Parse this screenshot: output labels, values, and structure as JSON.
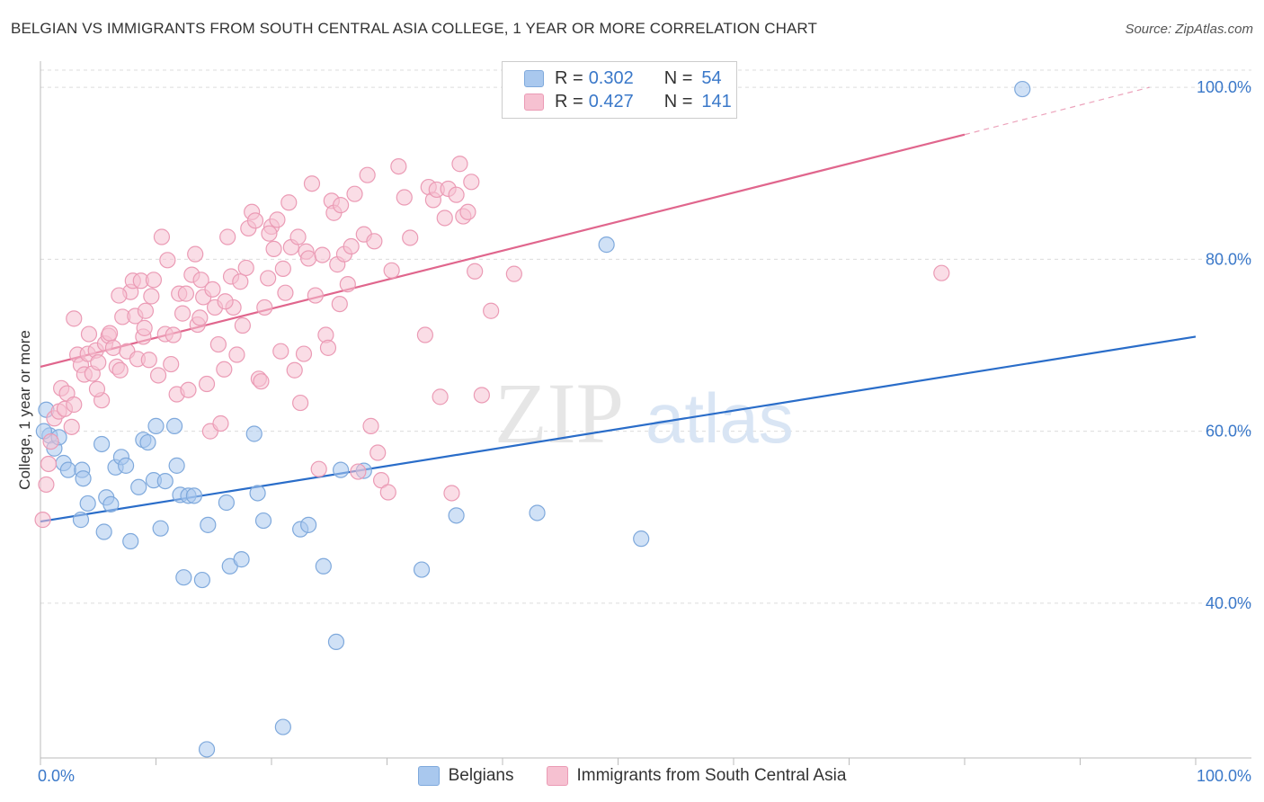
{
  "title": "BELGIAN VS IMMIGRANTS FROM SOUTH CENTRAL ASIA COLLEGE, 1 YEAR OR MORE CORRELATION CHART",
  "source": "Source: ZipAtlas.com",
  "watermark": {
    "zip": "ZIP",
    "atlas": "atlas"
  },
  "legend": {
    "series": [
      {
        "r_label": "R =",
        "r_value": "0.302",
        "n_label": "N =",
        "n_value": "54"
      },
      {
        "r_label": "R =",
        "r_value": "0.427",
        "n_label": "N =",
        "n_value": "141"
      }
    ]
  },
  "colors": {
    "blue_fill": "#a9c8ee",
    "blue_stroke": "#7fa9dc",
    "blue_line": "#2a6dc9",
    "pink_fill": "#f6c1d1",
    "pink_stroke": "#eb9bb5",
    "pink_line": "#e0668d",
    "tick_label": "#3a78c9",
    "grid": "#dcdcdc"
  },
  "chart_data": {
    "type": "scatter",
    "title": "BELGIAN VS IMMIGRANTS FROM SOUTH CENTRAL ASIA COLLEGE, 1 YEAR OR MORE CORRELATION CHART",
    "xlabel": "",
    "ylabel": "College, 1 year or more",
    "xlim": [
      0,
      100
    ],
    "ylim": [
      22,
      102
    ],
    "x_tick_labels": [
      "0.0%",
      "100.0%"
    ],
    "y_ticks": [
      40,
      60,
      80,
      100
    ],
    "y_tick_labels": [
      "40.0%",
      "60.0%",
      "80.0%",
      "100.0%"
    ],
    "legend_position": "bottom",
    "series": [
      {
        "name": "Belgians",
        "color": "blue",
        "r": 0.302,
        "n": 54,
        "trend": {
          "x0": 0,
          "y0": 49.5,
          "x1": 100,
          "y1": 71.0
        },
        "points": [
          [
            0.5,
            62.5
          ],
          [
            0.8,
            59.5
          ],
          [
            1.2,
            58.0
          ],
          [
            1.6,
            59.3
          ],
          [
            2.0,
            56.3
          ],
          [
            2.4,
            55.5
          ],
          [
            3.5,
            49.7
          ],
          [
            3.6,
            55.5
          ],
          [
            3.7,
            54.5
          ],
          [
            4.1,
            51.6
          ],
          [
            5.3,
            58.5
          ],
          [
            5.5,
            48.3
          ],
          [
            5.7,
            52.3
          ],
          [
            6.1,
            51.5
          ],
          [
            6.5,
            55.8
          ],
          [
            7.0,
            57.0
          ],
          [
            7.4,
            56.0
          ],
          [
            7.8,
            47.2
          ],
          [
            8.5,
            53.5
          ],
          [
            8.9,
            59.0
          ],
          [
            9.3,
            58.7
          ],
          [
            9.8,
            54.3
          ],
          [
            10.0,
            60.6
          ],
          [
            10.4,
            48.7
          ],
          [
            10.8,
            54.2
          ],
          [
            11.6,
            60.6
          ],
          [
            11.8,
            56.0
          ],
          [
            12.1,
            52.6
          ],
          [
            12.4,
            43.0
          ],
          [
            12.8,
            52.5
          ],
          [
            13.3,
            52.5
          ],
          [
            14.0,
            42.7
          ],
          [
            14.4,
            23.0
          ],
          [
            14.5,
            49.1
          ],
          [
            16.1,
            51.7
          ],
          [
            16.4,
            44.3
          ],
          [
            17.4,
            45.1
          ],
          [
            18.5,
            59.7
          ],
          [
            18.8,
            52.8
          ],
          [
            19.3,
            49.6
          ],
          [
            21.0,
            25.6
          ],
          [
            22.5,
            48.6
          ],
          [
            23.2,
            49.1
          ],
          [
            24.5,
            44.3
          ],
          [
            25.6,
            35.5
          ],
          [
            26.0,
            55.5
          ],
          [
            28.0,
            55.4
          ],
          [
            33.0,
            43.9
          ],
          [
            36.0,
            50.2
          ],
          [
            43.0,
            50.5
          ],
          [
            52.0,
            47.5
          ],
          [
            49.0,
            81.7
          ],
          [
            85.0,
            99.8
          ],
          [
            0.3,
            60.0
          ]
        ]
      },
      {
        "name": "Immigrants from South Central Asia",
        "color": "pink",
        "r": 0.427,
        "n": 141,
        "trend": {
          "x0": 0,
          "y0": 67.5,
          "x1": 80,
          "y1": 94.5,
          "dash_x1": 96,
          "dash_y1": 100
        },
        "points": [
          [
            0.2,
            49.7
          ],
          [
            0.5,
            53.8
          ],
          [
            0.7,
            56.2
          ],
          [
            0.9,
            58.8
          ],
          [
            1.2,
            61.5
          ],
          [
            1.6,
            62.3
          ],
          [
            1.8,
            65.0
          ],
          [
            2.1,
            62.6
          ],
          [
            2.3,
            64.4
          ],
          [
            2.7,
            60.5
          ],
          [
            2.9,
            63.1
          ],
          [
            3.2,
            68.9
          ],
          [
            3.5,
            67.7
          ],
          [
            3.8,
            66.6
          ],
          [
            4.1,
            69.0
          ],
          [
            4.2,
            71.3
          ],
          [
            4.5,
            66.7
          ],
          [
            4.8,
            69.4
          ],
          [
            5.0,
            68.0
          ],
          [
            5.3,
            63.6
          ],
          [
            5.6,
            70.2
          ],
          [
            5.9,
            71.1
          ],
          [
            6.0,
            71.4
          ],
          [
            6.3,
            69.7
          ],
          [
            6.6,
            67.5
          ],
          [
            6.9,
            67.1
          ],
          [
            7.1,
            73.3
          ],
          [
            7.5,
            69.3
          ],
          [
            7.8,
            76.2
          ],
          [
            8.0,
            77.5
          ],
          [
            8.2,
            73.4
          ],
          [
            8.4,
            68.4
          ],
          [
            8.7,
            77.5
          ],
          [
            8.9,
            71.0
          ],
          [
            9.1,
            74.0
          ],
          [
            9.4,
            68.3
          ],
          [
            9.6,
            75.7
          ],
          [
            9.8,
            77.6
          ],
          [
            10.2,
            66.5
          ],
          [
            10.5,
            82.6
          ],
          [
            10.8,
            71.3
          ],
          [
            11.0,
            79.9
          ],
          [
            11.3,
            67.8
          ],
          [
            11.5,
            71.2
          ],
          [
            11.8,
            64.3
          ],
          [
            12.0,
            76.0
          ],
          [
            12.3,
            73.7
          ],
          [
            12.6,
            76.0
          ],
          [
            12.8,
            64.8
          ],
          [
            13.1,
            78.2
          ],
          [
            13.4,
            80.6
          ],
          [
            13.6,
            72.4
          ],
          [
            13.9,
            77.6
          ],
          [
            14.1,
            75.6
          ],
          [
            14.4,
            65.5
          ],
          [
            14.7,
            60.0
          ],
          [
            14.9,
            76.5
          ],
          [
            15.1,
            74.4
          ],
          [
            15.4,
            70.1
          ],
          [
            15.6,
            60.9
          ],
          [
            15.9,
            67.2
          ],
          [
            16.2,
            82.6
          ],
          [
            16.5,
            78.0
          ],
          [
            16.7,
            74.4
          ],
          [
            17.0,
            68.9
          ],
          [
            17.3,
            77.4
          ],
          [
            17.5,
            72.3
          ],
          [
            17.8,
            79.0
          ],
          [
            18.0,
            83.6
          ],
          [
            18.3,
            85.5
          ],
          [
            18.6,
            84.5
          ],
          [
            18.9,
            66.1
          ],
          [
            19.1,
            65.8
          ],
          [
            19.4,
            74.4
          ],
          [
            19.7,
            77.8
          ],
          [
            20.0,
            83.8
          ],
          [
            20.2,
            81.2
          ],
          [
            20.5,
            84.6
          ],
          [
            20.8,
            69.3
          ],
          [
            21.0,
            78.9
          ],
          [
            21.2,
            76.1
          ],
          [
            21.5,
            86.6
          ],
          [
            21.7,
            81.4
          ],
          [
            22.0,
            67.1
          ],
          [
            22.3,
            82.6
          ],
          [
            22.5,
            63.3
          ],
          [
            22.8,
            69.0
          ],
          [
            23.0,
            80.9
          ],
          [
            23.2,
            80.1
          ],
          [
            23.5,
            88.8
          ],
          [
            23.8,
            75.8
          ],
          [
            24.1,
            55.6
          ],
          [
            24.4,
            80.5
          ],
          [
            24.7,
            71.2
          ],
          [
            24.9,
            69.7
          ],
          [
            25.2,
            86.8
          ],
          [
            25.4,
            85.4
          ],
          [
            25.7,
            79.4
          ],
          [
            26.0,
            86.3
          ],
          [
            26.3,
            80.6
          ],
          [
            26.6,
            77.1
          ],
          [
            26.9,
            81.5
          ],
          [
            27.2,
            87.6
          ],
          [
            27.5,
            55.3
          ],
          [
            28.0,
            82.9
          ],
          [
            28.3,
            89.8
          ],
          [
            28.6,
            60.6
          ],
          [
            28.9,
            82.1
          ],
          [
            29.2,
            57.5
          ],
          [
            29.5,
            54.3
          ],
          [
            30.1,
            52.9
          ],
          [
            30.4,
            78.7
          ],
          [
            31.0,
            90.8
          ],
          [
            32.0,
            82.5
          ],
          [
            33.3,
            71.2
          ],
          [
            33.6,
            88.4
          ],
          [
            34.0,
            86.9
          ],
          [
            34.3,
            88.1
          ],
          [
            34.6,
            64.0
          ],
          [
            35.0,
            84.8
          ],
          [
            35.3,
            88.2
          ],
          [
            35.6,
            52.8
          ],
          [
            36.0,
            87.5
          ],
          [
            36.3,
            91.1
          ],
          [
            36.6,
            85.0
          ],
          [
            37.0,
            85.5
          ],
          [
            37.3,
            89.0
          ],
          [
            37.6,
            78.6
          ],
          [
            38.2,
            64.2
          ],
          [
            39.0,
            74.0
          ],
          [
            41.0,
            78.3
          ],
          [
            78.0,
            78.4
          ],
          [
            2.9,
            73.1
          ],
          [
            4.9,
            64.9
          ],
          [
            6.8,
            75.8
          ],
          [
            9.0,
            72.0
          ],
          [
            13.8,
            73.2
          ],
          [
            16.0,
            75.1
          ],
          [
            19.8,
            83.0
          ],
          [
            25.9,
            74.8
          ],
          [
            31.5,
            87.2
          ]
        ]
      }
    ]
  },
  "axis": {
    "x_left_label": "0.0%",
    "x_right_label": "100.0%",
    "y_label": "College, 1 year or more"
  },
  "bottom_legend": [
    "Belgians",
    "Immigrants from South Central Asia"
  ]
}
